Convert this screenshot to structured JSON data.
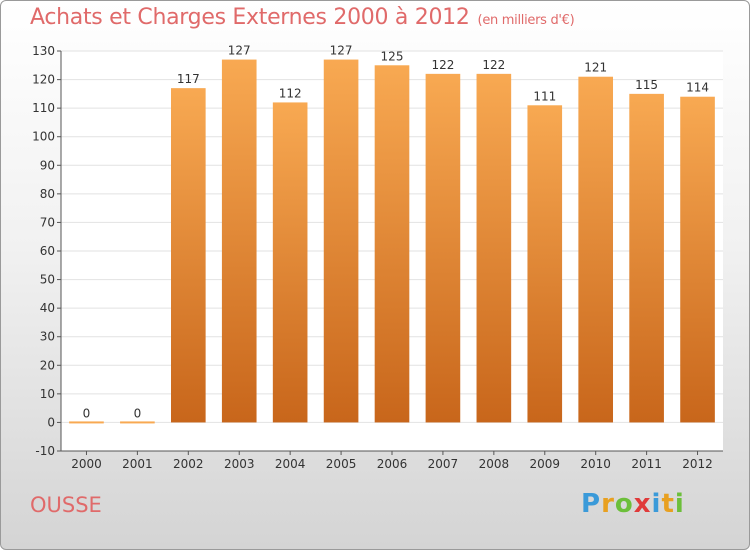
{
  "chart_data": {
    "type": "bar",
    "title": "Achats et Charges Externes 2000 à 2012",
    "subtitle": "(en milliers d'€)",
    "categories": [
      "2000",
      "2001",
      "2002",
      "2003",
      "2004",
      "2005",
      "2006",
      "2007",
      "2008",
      "2009",
      "2010",
      "2011",
      "2012"
    ],
    "values": [
      0,
      0,
      117,
      127,
      112,
      127,
      125,
      122,
      122,
      111,
      121,
      115,
      114
    ],
    "data_labels": [
      "0",
      "0",
      "117",
      "127",
      "112",
      "127",
      "125",
      "122",
      "122",
      "111",
      "121",
      "115",
      "114"
    ],
    "ylim": [
      -10,
      130
    ],
    "yticks": [
      130,
      120,
      110,
      100,
      90,
      80,
      70,
      60,
      50,
      40,
      30,
      20,
      10,
      0,
      -10
    ],
    "grid": true,
    "bar_color_top": "#f8a952",
    "bar_color_bottom": "#c8661b"
  },
  "footer": {
    "commune": "OUSSE",
    "logo_letters": [
      "P",
      "r",
      "o",
      "x",
      "i",
      "t",
      "i"
    ],
    "logo_colors": [
      "#3a9ad9",
      "#e8a020",
      "#6cbf3a",
      "#e03a3a",
      "#3a9ad9",
      "#e8a020",
      "#6cbf3a"
    ]
  }
}
